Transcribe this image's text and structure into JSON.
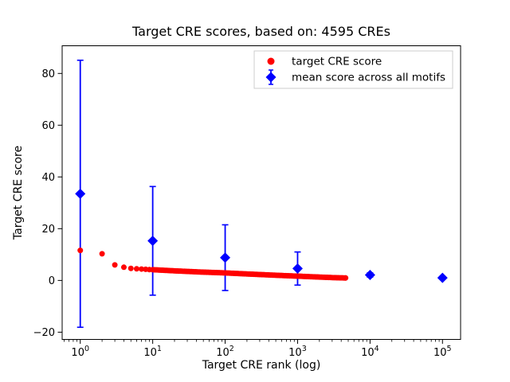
{
  "window": {
    "background": "#ffffff"
  },
  "chart_data": {
    "type": "scatter",
    "title": "Target CRE scores, based on: 4595 CREs",
    "xlabel": "Target CRE rank (log)",
    "ylabel": "Target CRE score",
    "x_scale": "log10",
    "xlim_log10": [
      -0.25,
      5.25
    ],
    "ylim": [
      -22.8,
      90.7
    ],
    "x_tick_exponents": [
      0,
      1,
      2,
      3,
      4,
      5
    ],
    "x_tick_base": "10",
    "y_ticks": [
      -20,
      0,
      20,
      40,
      60,
      80
    ],
    "grid": false,
    "n_cres": 4595,
    "series": [
      {
        "name": "target CRE score",
        "color": "#ff0000",
        "marker": "circle",
        "n_total": 4595,
        "anchors": [
          [
            1,
            11.6
          ],
          [
            2,
            10.3
          ],
          [
            3,
            6.0
          ],
          [
            4,
            5.1
          ],
          [
            5,
            4.65
          ],
          [
            6,
            4.5
          ],
          [
            7,
            4.4
          ],
          [
            8,
            4.3
          ],
          [
            9,
            4.2
          ],
          [
            10,
            4.15
          ],
          [
            20,
            3.7
          ],
          [
            50,
            3.2
          ],
          [
            100,
            2.9
          ],
          [
            200,
            2.5
          ],
          [
            500,
            2.0
          ],
          [
            1000,
            1.65
          ],
          [
            2000,
            1.3
          ],
          [
            3000,
            1.1
          ],
          [
            4595,
            0.95
          ]
        ]
      },
      {
        "name": "mean score across all motifs",
        "color": "#0000ff",
        "marker": "diamond",
        "x": [
          1,
          10,
          100,
          1000,
          10000,
          100000
        ],
        "y": [
          33.5,
          15.3,
          8.8,
          4.6,
          2.1,
          1.0
        ],
        "yerr": [
          51.6,
          21.0,
          12.7,
          6.4,
          0.8,
          0.5
        ]
      }
    ],
    "legend": {
      "position": "upper right",
      "entries": [
        "target CRE score",
        "mean score across all motifs"
      ]
    }
  }
}
